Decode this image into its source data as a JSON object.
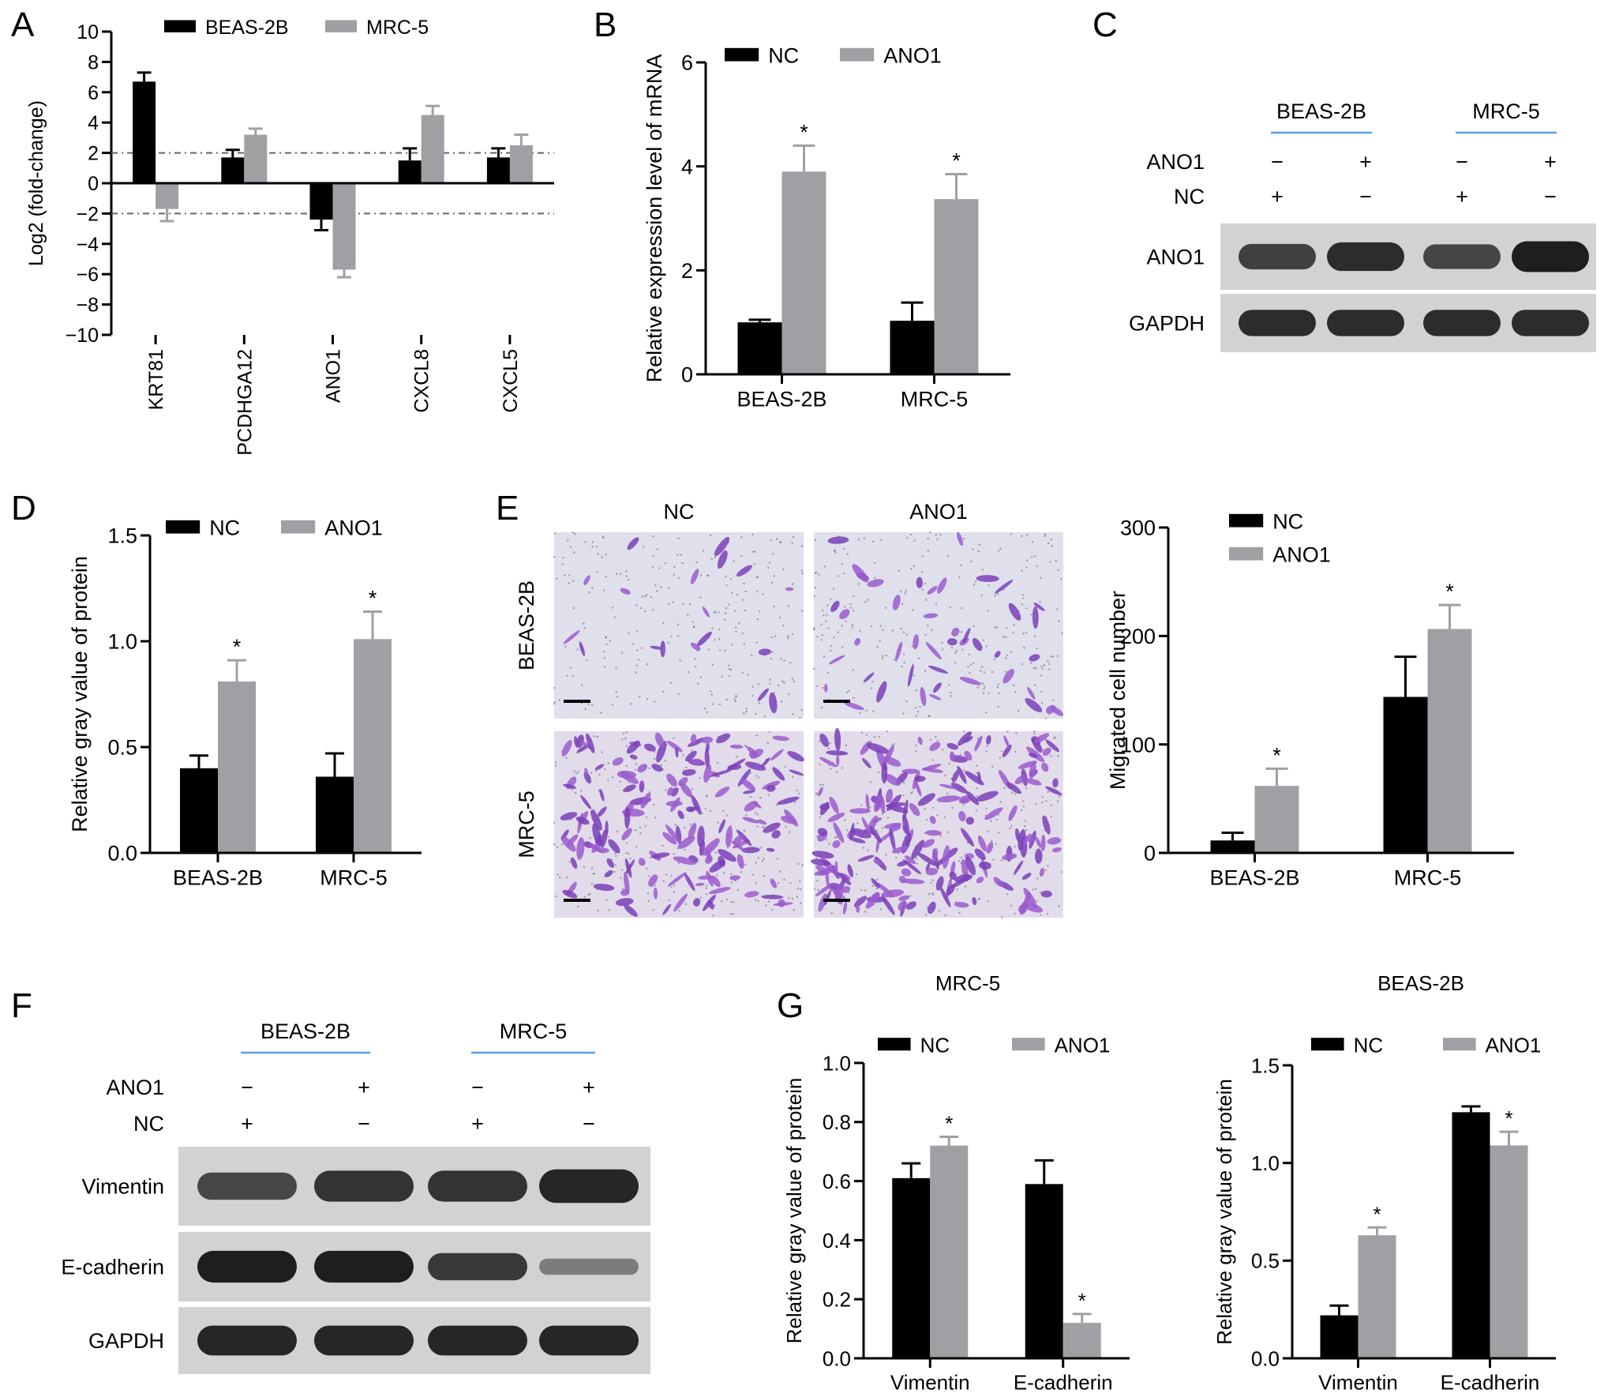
{
  "panel_letters": [
    "A",
    "B",
    "C",
    "D",
    "E",
    "F",
    "G"
  ],
  "colors": {
    "nc": "#000000",
    "treatment": "#a0a0a4",
    "blot_band": "#1e1e1e",
    "blot_bg": "#d2d2d2",
    "underline": "#5aa0e6"
  },
  "sig_mark": "*",
  "scale_bar_label": "",
  "chart_data": [
    {
      "id": "A",
      "type": "bar",
      "categories": [
        "KRT81",
        "PCDHGA12",
        "ANO1",
        "CXCL8",
        "CXCL5"
      ],
      "series": [
        {
          "name": "BEAS-2B",
          "values": [
            6.7,
            1.7,
            -2.4,
            1.5,
            1.7
          ],
          "errors": [
            0.6,
            0.5,
            0.7,
            0.8,
            0.6
          ]
        },
        {
          "name": "MRC-5",
          "values": [
            -1.7,
            3.2,
            -5.7,
            4.5,
            2.5
          ],
          "errors": [
            0.8,
            0.4,
            0.5,
            0.6,
            0.7
          ]
        }
      ],
      "ylabel": "Log2 (fold-change)",
      "ylim": [
        -10,
        10
      ],
      "yticks": [
        "−10",
        "−8",
        "−6",
        "−4",
        "−2",
        "0",
        "2",
        "4",
        "6",
        "8",
        "10"
      ],
      "threshold_lines": [
        2,
        -2
      ],
      "legend": "top"
    },
    {
      "id": "B",
      "type": "bar",
      "categories": [
        "BEAS-2B",
        "MRC-5"
      ],
      "series": [
        {
          "name": "NC",
          "values": [
            1.0,
            1.03
          ],
          "errors": [
            0.05,
            0.35
          ]
        },
        {
          "name": "ANO1",
          "values": [
            3.9,
            3.37
          ],
          "errors": [
            0.5,
            0.48
          ]
        }
      ],
      "significant": [
        false,
        false,
        true,
        true
      ],
      "ylabel": "Relative expression level of mRNA",
      "ylim": [
        0,
        6
      ],
      "yticks": [
        "0",
        "2",
        "4",
        "6"
      ],
      "legend": "top"
    },
    {
      "id": "D",
      "type": "bar",
      "categories": [
        "BEAS-2B",
        "MRC-5"
      ],
      "series": [
        {
          "name": "NC",
          "values": [
            0.4,
            0.36
          ],
          "errors": [
            0.06,
            0.11
          ]
        },
        {
          "name": "ANO1",
          "values": [
            0.81,
            1.01
          ],
          "errors": [
            0.1,
            0.13
          ]
        }
      ],
      "significant": [
        false,
        false,
        true,
        true
      ],
      "ylabel": "Relative gray value of protein",
      "ylim": [
        0,
        1.5
      ],
      "yticks": [
        "0.0",
        "0.5",
        "1.0",
        "1.5"
      ],
      "legend": "top"
    },
    {
      "id": "E",
      "type": "bar",
      "categories": [
        "BEAS-2B",
        "MRC-5"
      ],
      "series": [
        {
          "name": "NC",
          "values": [
            13,
            163
          ],
          "errors": [
            8,
            42
          ]
        },
        {
          "name": "ANO1",
          "values": [
            70,
            234
          ],
          "errors": [
            18,
            25
          ]
        }
      ],
      "significant": [
        false,
        false,
        true,
        true
      ],
      "ylabel": "Migrated cell number",
      "ylim": [
        0,
        340
      ],
      "yticks": [
        "0",
        "100",
        "200",
        "300"
      ],
      "legend": "top-left"
    },
    {
      "id": "G1",
      "type": "bar",
      "title": "MRC-5",
      "categories": [
        "Vimentin",
        "E-cadherin"
      ],
      "series": [
        {
          "name": "NC",
          "values": [
            0.61,
            0.59
          ],
          "errors": [
            0.05,
            0.08
          ]
        },
        {
          "name": "ANO1",
          "values": [
            0.72,
            0.12
          ],
          "errors": [
            0.03,
            0.03
          ]
        }
      ],
      "significant": [
        false,
        false,
        true,
        true
      ],
      "ylabel": "Relative gray value of protein",
      "ylim": [
        0,
        1.0
      ],
      "yticks": [
        "0.0",
        "0.2",
        "0.4",
        "0.6",
        "0.8",
        "1.0"
      ],
      "legend": "top"
    },
    {
      "id": "G2",
      "type": "bar",
      "title": "BEAS-2B",
      "categories": [
        "Vimentin",
        "E-cadherin"
      ],
      "series": [
        {
          "name": "NC",
          "values": [
            0.22,
            1.26
          ],
          "errors": [
            0.05,
            0.03
          ]
        },
        {
          "name": "ANO1",
          "values": [
            0.63,
            1.09
          ],
          "errors": [
            0.04,
            0.07
          ]
        }
      ],
      "significant": [
        false,
        false,
        true,
        true
      ],
      "ylabel": "Relative gray value of protein",
      "ylim": [
        0,
        1.5
      ],
      "yticks": [
        "0.0",
        "0.5",
        "1.0",
        "1.5"
      ],
      "legend": "top"
    }
  ],
  "blot_C": {
    "groups": [
      "BEAS-2B",
      "MRC-5"
    ],
    "conditions": [
      {
        "label": "ANO1",
        "values": [
          "−",
          "+",
          "−",
          "+"
        ]
      },
      {
        "label": "NC",
        "values": [
          "+",
          "−",
          "+",
          "−"
        ]
      }
    ],
    "rows": [
      {
        "label": "ANO1",
        "intensities": [
          0.75,
          0.9,
          0.72,
          1.0
        ]
      },
      {
        "label": "GAPDH",
        "intensities": [
          0.9,
          0.9,
          0.9,
          0.9
        ]
      }
    ]
  },
  "micrograph_E": {
    "columns": [
      "NC",
      "ANO1"
    ],
    "rows": [
      "BEAS-2B",
      "MRC-5"
    ],
    "cell_density": [
      [
        0.08,
        0.2
      ],
      [
        0.75,
        0.95
      ]
    ]
  },
  "blot_F": {
    "groups": [
      "BEAS-2B",
      "MRC-5"
    ],
    "conditions": [
      {
        "label": "ANO1",
        "values": [
          "−",
          "+",
          "−",
          "+"
        ]
      },
      {
        "label": "NC",
        "values": [
          "+",
          "−",
          "+",
          "−"
        ]
      }
    ],
    "rows": [
      {
        "label": "Vimentin",
        "intensities": [
          0.7,
          0.85,
          0.85,
          0.95
        ]
      },
      {
        "label": "E-cadherin",
        "intensities": [
          1.0,
          1.0,
          0.8,
          0.3
        ]
      },
      {
        "label": "GAPDH",
        "intensities": [
          0.95,
          0.95,
          0.95,
          0.95
        ]
      }
    ]
  }
}
